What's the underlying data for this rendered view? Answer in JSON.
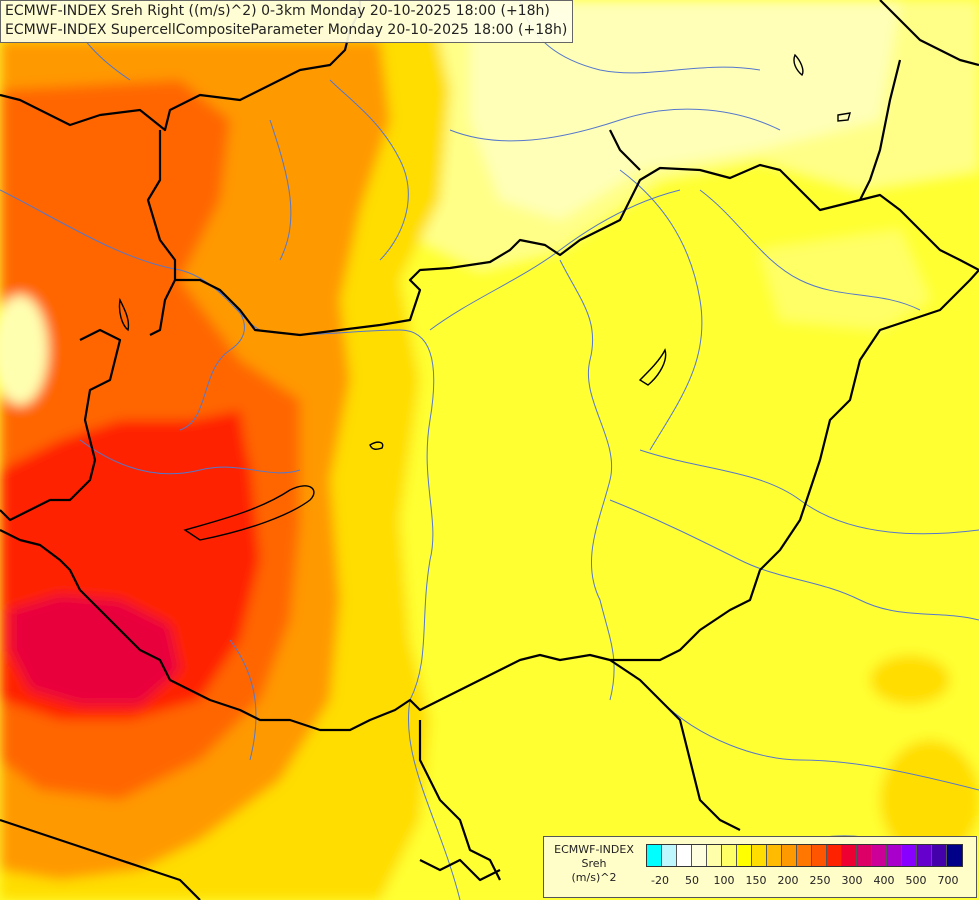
{
  "header": {
    "line1": "ECMWF-INDEX Sreh Right ((m/s)^2) 0-3km Monday 20-10-2025 18:00 (+18h)",
    "line2": "ECMWF-INDEX SupercellCompositeParameter Monday 20-10-2025 18:00 (+18h)"
  },
  "legend": {
    "title1": "ECMWF-INDEX",
    "title2": "Sreh",
    "title3": "(m/s)^2",
    "swatches": [
      "#00ffff",
      "#bff7ff",
      "#ffffff",
      "#ffffe0",
      "#ffffaa",
      "#ffff66",
      "#ffff00",
      "#ffdd00",
      "#ffbb00",
      "#ff9900",
      "#ff7700",
      "#ff5500",
      "#ff2200",
      "#ee0033",
      "#dd0066",
      "#cc0099",
      "#aa00cc",
      "#8800ff",
      "#6600cc",
      "#4400aa",
      "#000088"
    ],
    "ticks": [
      "-20",
      "50",
      "100",
      "150",
      "200",
      "250",
      "300",
      "400",
      "500",
      "700"
    ]
  },
  "colors": {
    "base_yellow": "#ffff33",
    "pale_yellow": "#ffffa0",
    "gold": "#ffcc00",
    "orange": "#ff9900",
    "dark_orange": "#ff6600",
    "red": "#ff2200",
    "crimson": "#e8003c",
    "border": "#000000",
    "river": "#5577cc"
  }
}
